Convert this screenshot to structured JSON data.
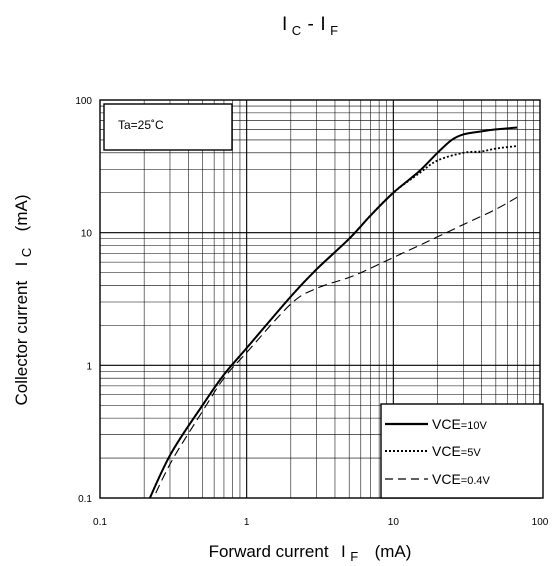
{
  "chart_data": {
    "type": "line",
    "title_letters": [
      "I",
      "C",
      "-",
      "I",
      "F"
    ],
    "xlabel": "Forward current",
    "xlabel_symbol": [
      "I",
      "F"
    ],
    "xlabel_unit": "(mA)",
    "ylabel": "Collector current",
    "ylabel_symbol": [
      "I",
      "C"
    ],
    "ylabel_unit": "(mA)",
    "x_scale": "log",
    "y_scale": "log",
    "xlim": [
      0.1,
      100
    ],
    "ylim": [
      0.1,
      100
    ],
    "x_ticks": [
      {
        "value": 0.1,
        "label": "0.1"
      },
      {
        "value": 1,
        "label": "1"
      },
      {
        "value": 10,
        "label": "10"
      },
      {
        "value": 100,
        "label": "100"
      }
    ],
    "y_ticks": [
      {
        "value": 0.1,
        "label": "0.1"
      },
      {
        "value": 1,
        "label": "1"
      },
      {
        "value": 10,
        "label": "10"
      },
      {
        "value": 100,
        "label": "100"
      }
    ],
    "grid": true,
    "annotation": "Ta=25˚C",
    "legend_position": "bottom-right",
    "series": [
      {
        "name": "VCE=10V",
        "legend_main": "VCE",
        "legend_sub": "=10V",
        "style": "solid",
        "x": [
          0.2,
          0.3,
          0.5,
          0.7,
          1,
          2,
          3,
          5,
          7,
          10,
          15,
          20,
          25,
          30,
          40,
          50,
          70
        ],
        "y": [
          0.08,
          0.21,
          0.5,
          0.85,
          1.35,
          3.3,
          5.3,
          9.0,
          13.5,
          20,
          29,
          40,
          50,
          55,
          58,
          60,
          62
        ]
      },
      {
        "name": "VCE=5V",
        "legend_main": "VCE",
        "legend_sub": "=5V",
        "style": "dotted",
        "x": [
          0.2,
          0.3,
          0.5,
          0.7,
          1,
          2,
          3,
          5,
          7,
          10,
          15,
          20,
          30,
          40,
          50,
          70
        ],
        "y": [
          0.08,
          0.21,
          0.5,
          0.85,
          1.35,
          3.3,
          5.3,
          9.0,
          13.5,
          20,
          28,
          35,
          40,
          41,
          43,
          45
        ]
      },
      {
        "name": "VCE=0.4V",
        "legend_main": "VCE",
        "legend_sub": "=0.4V",
        "style": "dashed",
        "x": [
          0.2,
          0.3,
          0.5,
          0.7,
          1,
          2,
          3,
          5,
          7,
          10,
          15,
          20,
          30,
          50,
          70
        ],
        "y": [
          0.07,
          0.18,
          0.45,
          0.8,
          1.25,
          2.9,
          3.8,
          4.6,
          5.4,
          6.5,
          8.0,
          9.3,
          11.5,
          15,
          18.5
        ]
      }
    ]
  }
}
